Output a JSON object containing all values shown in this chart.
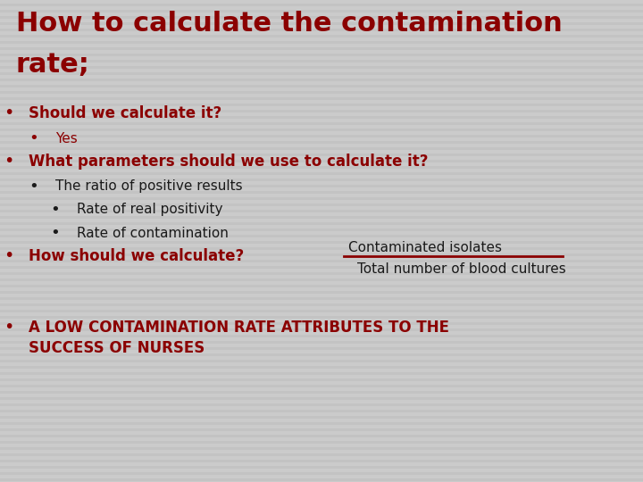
{
  "title_line1": "How to calculate the contamination",
  "title_line2": "rate;",
  "title_color": "#8B0000",
  "title_fontsize": 22,
  "background_color": "#CBCBCB",
  "stripe_color": "#BFBFBF",
  "bullet_color": "#8B0000",
  "black_color": "#1a1a1a",
  "bullets": [
    {
      "level": 1,
      "text": "Should we calculate it?",
      "color": "#8B0000",
      "bold": true
    },
    {
      "level": 2,
      "text": "Yes",
      "color": "#8B0000",
      "bold": false
    },
    {
      "level": 1,
      "text": "What parameters should we use to calculate it?",
      "color": "#8B0000",
      "bold": true
    },
    {
      "level": 2,
      "text": "The ratio of positive results",
      "color": "#1a1a1a",
      "bold": false
    },
    {
      "level": 3,
      "text": "Rate of real positivity",
      "color": "#1a1a1a",
      "bold": false
    },
    {
      "level": 3,
      "text": "Rate of contamination",
      "color": "#1a1a1a",
      "bold": false
    },
    {
      "level": 1,
      "text": "How should we calculate?",
      "color": "#8B0000",
      "bold": true
    }
  ],
  "fraction_numerator": "Contaminated isolates",
  "fraction_denominator": "Total number of blood cultures",
  "fraction_line_color": "#8B0000",
  "last_bullet_text_line1": "A LOW CONTAMINATION RATE ATTRIBUTES TO THE",
  "last_bullet_text_line2": "SUCCESS OF NURSES",
  "last_bullet_color": "#8B0000"
}
